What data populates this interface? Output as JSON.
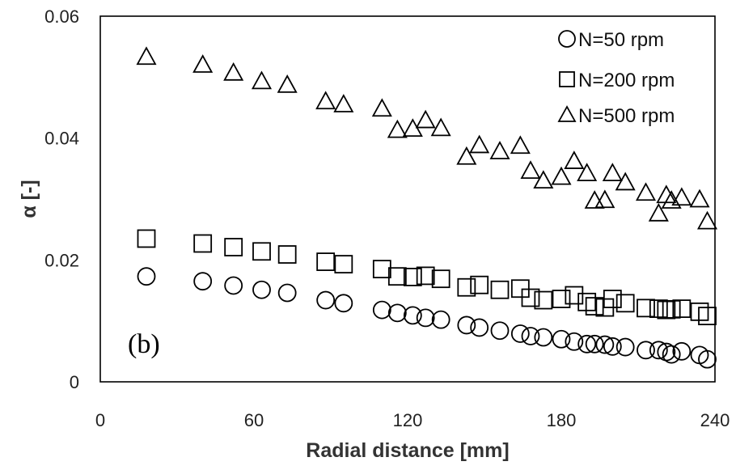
{
  "chart_data": {
    "type": "scatter",
    "title": "",
    "panel_label": "(b)",
    "xlabel": "Radial distance [mm]",
    "ylabel": "α [-]",
    "xlim": [
      0,
      240
    ],
    "ylim": [
      0,
      0.06
    ],
    "xticks": [
      0,
      60,
      120,
      180,
      240
    ],
    "yticks": [
      0,
      0.02,
      0.04,
      0.06
    ],
    "xtick_labels": [
      "0",
      "60",
      "120",
      "180",
      "240"
    ],
    "ytick_labels": [
      "0",
      "0.02",
      "0.04",
      "0.06"
    ],
    "grid": false,
    "legend_position": "top-right",
    "series": [
      {
        "name": "N=50 rpm",
        "marker": "circle",
        "x": [
          18,
          40,
          52,
          63,
          73,
          88,
          95,
          110,
          116,
          122,
          127,
          133,
          143,
          148,
          156,
          164,
          168,
          173,
          180,
          185,
          190,
          193,
          197,
          200,
          205,
          213,
          218,
          221,
          223,
          227,
          234,
          237
        ],
        "y": [
          0.0173,
          0.0165,
          0.0158,
          0.0151,
          0.0146,
          0.0134,
          0.0129,
          0.0118,
          0.0113,
          0.0109,
          0.0105,
          0.0102,
          0.0093,
          0.0089,
          0.0084,
          0.0079,
          0.0075,
          0.0073,
          0.007,
          0.0066,
          0.0062,
          0.0062,
          0.0061,
          0.0058,
          0.0057,
          0.0052,
          0.0052,
          0.0049,
          0.0045,
          0.005,
          0.0044,
          0.0037
        ]
      },
      {
        "name": "N=200 rpm",
        "marker": "square",
        "x": [
          18,
          40,
          52,
          63,
          73,
          88,
          95,
          110,
          116,
          122,
          127,
          133,
          143,
          148,
          156,
          164,
          168,
          173,
          180,
          185,
          190,
          193,
          197,
          200,
          205,
          213,
          218,
          221,
          223,
          227,
          234,
          237
        ],
        "y": [
          0.0235,
          0.0227,
          0.0221,
          0.0214,
          0.0209,
          0.0197,
          0.0193,
          0.0185,
          0.0173,
          0.0172,
          0.0174,
          0.0169,
          0.0155,
          0.0159,
          0.0151,
          0.0153,
          0.0138,
          0.0134,
          0.0136,
          0.0142,
          0.0131,
          0.0124,
          0.0122,
          0.0136,
          0.0129,
          0.0121,
          0.012,
          0.0118,
          0.0119,
          0.012,
          0.0115,
          0.0108
        ]
      },
      {
        "name": "N=500 rpm",
        "marker": "triangle",
        "x": [
          18,
          40,
          52,
          63,
          73,
          88,
          95,
          110,
          116,
          122,
          127,
          133,
          143,
          148,
          156,
          164,
          168,
          173,
          180,
          185,
          190,
          193,
          197,
          200,
          205,
          213,
          218,
          221,
          223,
          227,
          234,
          237
        ],
        "y": [
          0.0532,
          0.0519,
          0.0506,
          0.0492,
          0.0486,
          0.0459,
          0.0454,
          0.0447,
          0.0412,
          0.0414,
          0.0428,
          0.0415,
          0.0368,
          0.0387,
          0.0377,
          0.0386,
          0.0345,
          0.0329,
          0.0335,
          0.0361,
          0.0341,
          0.0296,
          0.0297,
          0.0341,
          0.0326,
          0.0309,
          0.0275,
          0.0305,
          0.0296,
          0.0301,
          0.0298,
          0.0262
        ]
      }
    ]
  }
}
